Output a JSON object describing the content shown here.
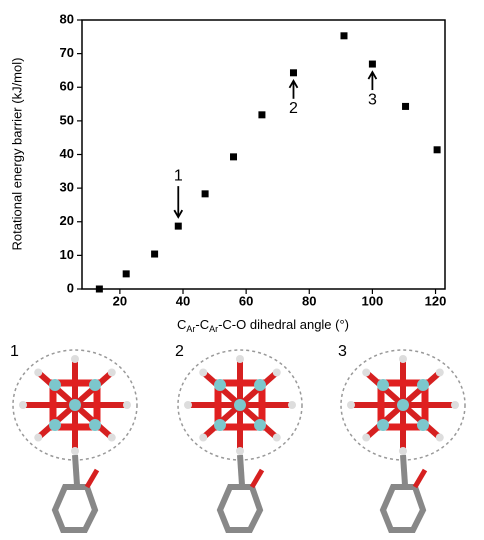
{
  "chart_data": {
    "type": "scatter",
    "y_label": "Rotational energy barrier (kJ/mol)",
    "x_label_parts": [
      "C",
      "Ar",
      "-C",
      "Ar",
      "-C-O dihedral angle (°)"
    ],
    "x": [
      13.5,
      22,
      31,
      38.5,
      47,
      56,
      65,
      75,
      91,
      100,
      110.5,
      120.5
    ],
    "values": [
      0,
      4.5,
      10.4,
      18.7,
      28.3,
      39.3,
      51.8,
      64.3,
      75.3,
      66.9,
      54.3,
      41.4
    ],
    "color": "#000000",
    "xlim": [
      8,
      123
    ],
    "xticks": [
      20,
      40,
      60,
      80,
      100,
      120
    ],
    "ylim": [
      0,
      80
    ],
    "yticks": [
      0,
      10,
      20,
      30,
      40,
      50,
      60,
      70,
      80
    ],
    "annotations": [
      "1",
      "2",
      "3"
    ],
    "structures": [
      "1",
      "2",
      "3"
    ]
  }
}
